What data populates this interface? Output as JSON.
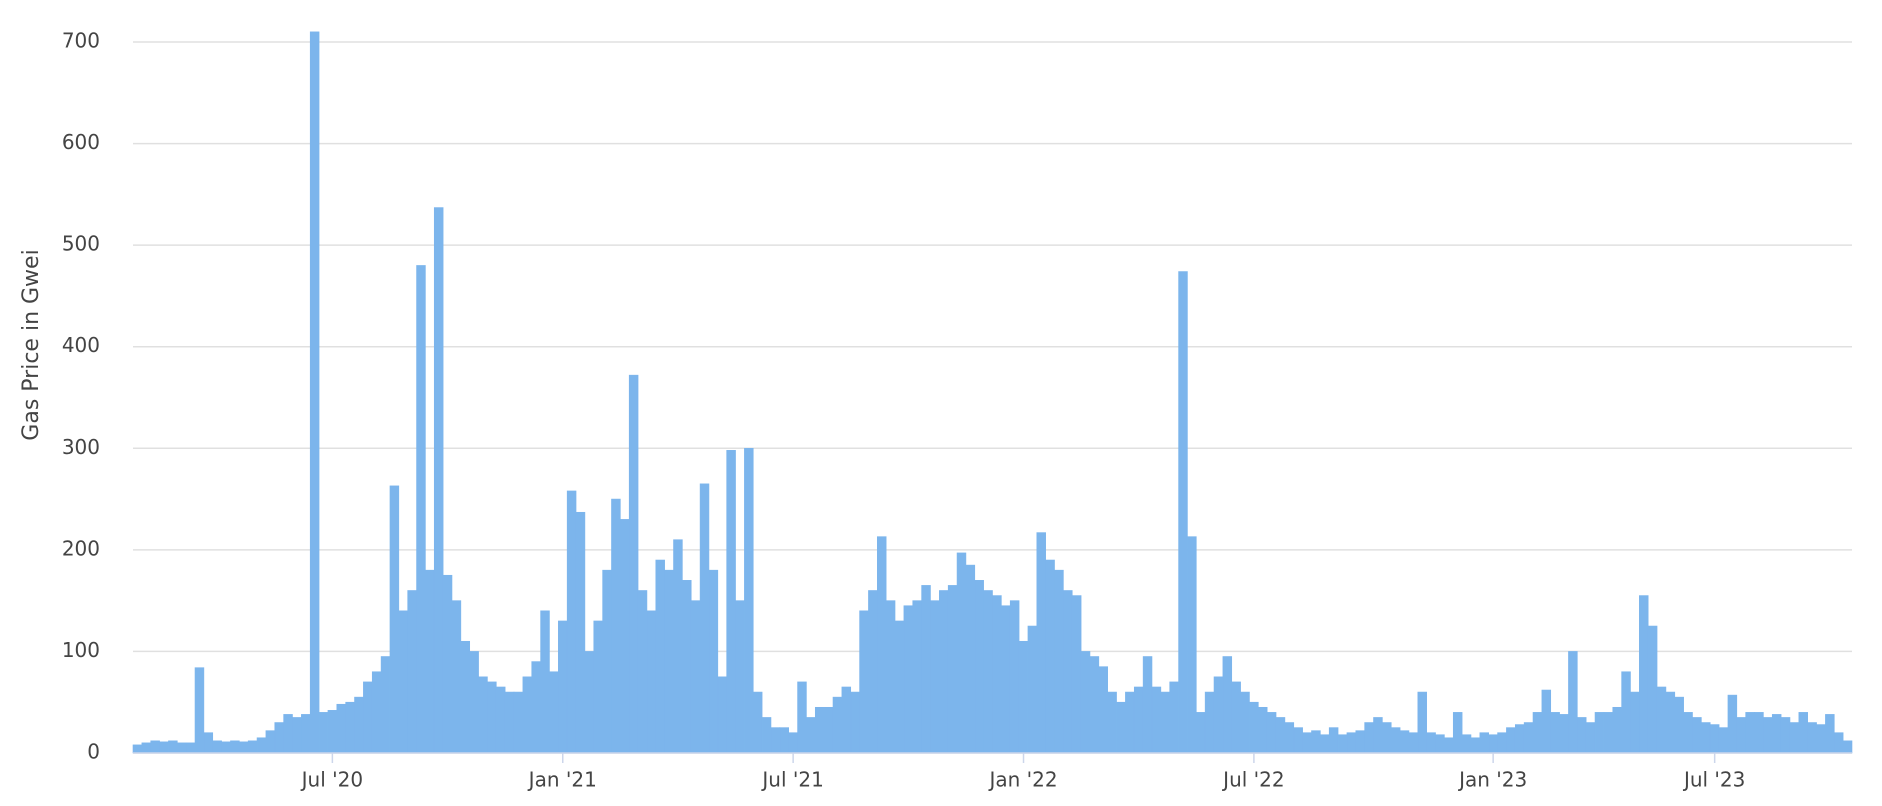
{
  "chart_data": {
    "type": "bar",
    "y_label": "Gas Price in Gwei",
    "color": "#7cb5ec",
    "grid": true,
    "ylim": [
      0,
      700
    ],
    "yticks": [
      0,
      100,
      200,
      300,
      400,
      500,
      600,
      700
    ],
    "categories": [
      null,
      null,
      null,
      null,
      null,
      null,
      null,
      null,
      null,
      null,
      null,
      null,
      null,
      null,
      null,
      null,
      null,
      null,
      null,
      null,
      null,
      null,
      "Jul '20",
      null,
      null,
      null,
      null,
      null,
      null,
      null,
      null,
      null,
      null,
      null,
      null,
      null,
      null,
      null,
      null,
      null,
      null,
      null,
      null,
      null,
      null,
      null,
      null,
      null,
      "Jan '21",
      null,
      null,
      null,
      null,
      null,
      null,
      null,
      null,
      null,
      null,
      null,
      null,
      null,
      null,
      null,
      null,
      null,
      null,
      null,
      null,
      null,
      null,
      null,
      null,
      null,
      "Jul '21",
      null,
      null,
      null,
      null,
      null,
      null,
      null,
      null,
      null,
      null,
      null,
      null,
      null,
      null,
      null,
      null,
      null,
      null,
      null,
      null,
      null,
      null,
      null,
      null,
      null,
      "Jan '22",
      null,
      null,
      null,
      null,
      null,
      null,
      null,
      null,
      null,
      null,
      null,
      null,
      null,
      null,
      null,
      null,
      null,
      null,
      null,
      null,
      null,
      null,
      null,
      null,
      null,
      "Jul '22",
      null,
      null,
      null,
      null,
      null,
      null,
      null,
      null,
      null,
      null,
      null,
      null,
      null,
      null,
      null,
      null,
      null,
      null,
      null,
      null,
      null,
      null,
      null,
      null,
      null,
      null,
      "Jan '23",
      null,
      null,
      null,
      null,
      null,
      null,
      null,
      null,
      null,
      null,
      null,
      null,
      null,
      null,
      null,
      null,
      null,
      null,
      null,
      null,
      null,
      null,
      null,
      null,
      "Jul '23",
      null,
      null,
      null,
      null,
      null,
      null,
      null,
      null,
      null,
      null,
      null,
      null,
      null,
      null,
      null
    ],
    "values": [
      8,
      10,
      12,
      11,
      12,
      10,
      10,
      84,
      20,
      12,
      11,
      12,
      11,
      12,
      15,
      22,
      30,
      38,
      35,
      38,
      710,
      40,
      42,
      48,
      50,
      55,
      70,
      80,
      95,
      263,
      140,
      160,
      480,
      180,
      537,
      175,
      150,
      110,
      100,
      75,
      70,
      65,
      60,
      60,
      75,
      90,
      140,
      80,
      130,
      258,
      237,
      100,
      130,
      180,
      250,
      230,
      372,
      160,
      140,
      190,
      180,
      210,
      170,
      150,
      265,
      180,
      75,
      298,
      150,
      300,
      60,
      35,
      25,
      25,
      20,
      70,
      35,
      45,
      45,
      55,
      65,
      60,
      140,
      160,
      213,
      150,
      130,
      145,
      150,
      165,
      150,
      160,
      165,
      197,
      185,
      170,
      160,
      155,
      145,
      150,
      110,
      125,
      217,
      190,
      180,
      160,
      155,
      100,
      95,
      85,
      60,
      50,
      60,
      65,
      95,
      65,
      60,
      70,
      474,
      213,
      40,
      60,
      75,
      95,
      70,
      60,
      50,
      45,
      40,
      35,
      30,
      25,
      20,
      22,
      18,
      25,
      18,
      20,
      22,
      30,
      35,
      30,
      25,
      22,
      20,
      60,
      20,
      18,
      15,
      40,
      18,
      15,
      20,
      18,
      20,
      25,
      28,
      30,
      40,
      62,
      40,
      38,
      100,
      35,
      30,
      40,
      40,
      45,
      80,
      60,
      155,
      125,
      65,
      60,
      55,
      40,
      35,
      30,
      28,
      25,
      57,
      35,
      40,
      40,
      35,
      38,
      35,
      30,
      40,
      30,
      28,
      38,
      20,
      12
    ]
  }
}
